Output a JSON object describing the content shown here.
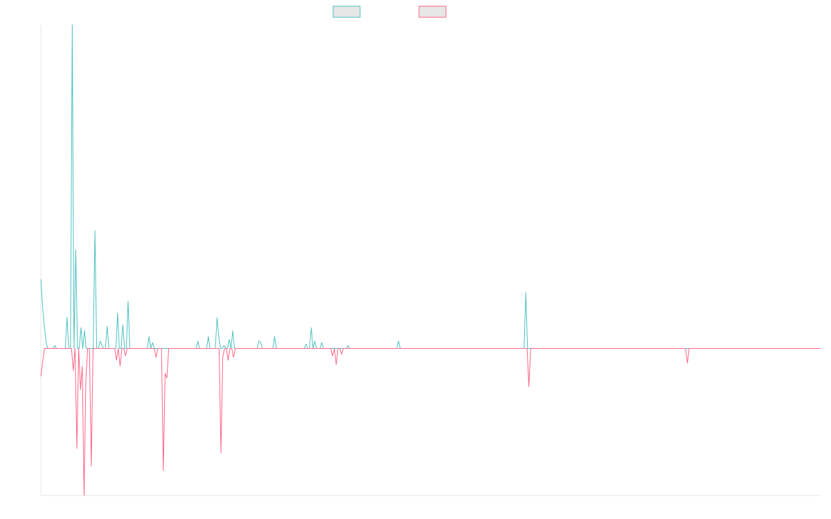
{
  "chart_data": {
    "type": "line",
    "legend_position": "top-center",
    "grid": false,
    "xlim": [
      0,
      430
    ],
    "ylim": [
      -100,
      220
    ],
    "series": [
      {
        "name": "",
        "color": "#4bc0c0",
        "fill": "#e6e6e6",
        "values": [
          47,
          28,
          15,
          4,
          0,
          0,
          0,
          0,
          2,
          0,
          0,
          0,
          0,
          0,
          0,
          21,
          0,
          0,
          220,
          0,
          67,
          0,
          0,
          14,
          0,
          12,
          0,
          0,
          0,
          0,
          0,
          80,
          0,
          0,
          5,
          2,
          0,
          0,
          15,
          0,
          0,
          0,
          0,
          0,
          24,
          0,
          0,
          16,
          0,
          0,
          32,
          0,
          0,
          0,
          0,
          0,
          0,
          0,
          0,
          0,
          0,
          0,
          8,
          0,
          4,
          0,
          0,
          0,
          0,
          0,
          0,
          0,
          0,
          0,
          0,
          0,
          0,
          0,
          0,
          0,
          0,
          0,
          0,
          0,
          0,
          0,
          0,
          0,
          0,
          0,
          5,
          0,
          0,
          0,
          0,
          0,
          8,
          0,
          0,
          0,
          0,
          21,
          8,
          0,
          0,
          2,
          0,
          0,
          6,
          0,
          12,
          0,
          0,
          0,
          0,
          0,
          0,
          0,
          0,
          0,
          0,
          0,
          0,
          0,
          0,
          5,
          4,
          0,
          0,
          0,
          0,
          0,
          0,
          0,
          8,
          0,
          0,
          0,
          0,
          0,
          0,
          0,
          0,
          0,
          0,
          0,
          0,
          0,
          0,
          0,
          0,
          0,
          3,
          0,
          0,
          14,
          0,
          5,
          0,
          0,
          0,
          4,
          0,
          0,
          0,
          0,
          0,
          0,
          0,
          0,
          0,
          0,
          0,
          0,
          0,
          0,
          2,
          0,
          0,
          0,
          0,
          0,
          0,
          0,
          0,
          0,
          0,
          0,
          0,
          0,
          0,
          0,
          0,
          0,
          0,
          0,
          0,
          0,
          0,
          0,
          0,
          0,
          0,
          0,
          0,
          5,
          0,
          0,
          0,
          0,
          0,
          0,
          0,
          0,
          0,
          0,
          0,
          0,
          0,
          0,
          0,
          0,
          0,
          0,
          0,
          0,
          0,
          0,
          0,
          0,
          0,
          0,
          0,
          0,
          0,
          0,
          0,
          0,
          0,
          0,
          0,
          0,
          0,
          0,
          0,
          0,
          0,
          0,
          0,
          0,
          0,
          0,
          0,
          0,
          0,
          0,
          0,
          0,
          0,
          0,
          0,
          0,
          0,
          0,
          0,
          0,
          0,
          0,
          0,
          0,
          0,
          0,
          0,
          0,
          0,
          0,
          0,
          0,
          38,
          0,
          0,
          0,
          0,
          0,
          0,
          0,
          0,
          0,
          0,
          0,
          0,
          0,
          0,
          0,
          0,
          0,
          0,
          0,
          0,
          0,
          0,
          0,
          0,
          0,
          0,
          0,
          0,
          0,
          0,
          0,
          0,
          0,
          0,
          0,
          0,
          0,
          0,
          0,
          0,
          0,
          0,
          0,
          0,
          0,
          0,
          0,
          0,
          0,
          0,
          0,
          0,
          0,
          0,
          0,
          0,
          0,
          0,
          0,
          0,
          0,
          0,
          0,
          0,
          0,
          0,
          0,
          0,
          0,
          0,
          0,
          0,
          0,
          0,
          0,
          0,
          0,
          0,
          0,
          0,
          0,
          0,
          0,
          0,
          0,
          0,
          0,
          0,
          0,
          0,
          0,
          0,
          0,
          0,
          0,
          0,
          0,
          0,
          0,
          0,
          0,
          0,
          0,
          0,
          0,
          0,
          0,
          0,
          0,
          0,
          0,
          0,
          0,
          0,
          0,
          0,
          0,
          0,
          0,
          0,
          0,
          0,
          0,
          0,
          0,
          0,
          0,
          0,
          0,
          0,
          0,
          0,
          0,
          0,
          0,
          0,
          0,
          0,
          0,
          0,
          0,
          0,
          0,
          0,
          0,
          0,
          0,
          0,
          0,
          0,
          0,
          0,
          0,
          0,
          0,
          0,
          0,
          0,
          0,
          0,
          0,
          0,
          0,
          0,
          0,
          0,
          0,
          0,
          0
        ]
      },
      {
        "name": "",
        "color": "#ff6384",
        "fill": "#e6e6e6",
        "values": [
          -19,
          -9,
          0,
          0,
          0,
          0,
          0,
          0,
          0,
          0,
          0,
          0,
          0,
          0,
          0,
          0,
          0,
          0,
          -15,
          0,
          -68,
          0,
          -28,
          -12,
          -100,
          -21,
          0,
          0,
          -80,
          0,
          0,
          0,
          0,
          0,
          0,
          0,
          0,
          0,
          0,
          0,
          0,
          0,
          -8,
          0,
          -12,
          0,
          0,
          -5,
          0,
          0,
          0,
          0,
          0,
          0,
          0,
          0,
          0,
          0,
          0,
          0,
          0,
          0,
          0,
          0,
          -6,
          0,
          0,
          0,
          -83,
          -17,
          -20,
          0,
          0,
          0,
          0,
          0,
          0,
          0,
          0,
          0,
          0,
          0,
          0,
          0,
          0,
          0,
          0,
          0,
          0,
          0,
          0,
          0,
          0,
          0,
          0,
          0,
          0,
          0,
          0,
          0,
          -71,
          -6,
          0,
          0,
          -8,
          0,
          0,
          -6,
          0,
          0,
          0,
          0,
          0,
          0,
          0,
          0,
          0,
          0,
          0,
          0,
          0,
          0,
          0,
          0,
          0,
          0,
          0,
          0,
          0,
          0,
          0,
          0,
          0,
          0,
          0,
          0,
          0,
          0,
          0,
          0,
          0,
          0,
          0,
          0,
          0,
          0,
          0,
          0,
          0,
          0,
          0,
          0,
          0,
          0,
          0,
          0,
          0,
          0,
          0,
          0,
          0,
          0,
          -5,
          0,
          -11,
          0,
          0,
          -4,
          0,
          0,
          0,
          0,
          0,
          0,
          0,
          0,
          0,
          0,
          0,
          0,
          0,
          0,
          0,
          0,
          0,
          0,
          0,
          0,
          0,
          0,
          0,
          0,
          0,
          0,
          0,
          0,
          0,
          0,
          0,
          0,
          0,
          0,
          0,
          0,
          0,
          0,
          0,
          0,
          0,
          0,
          0,
          0,
          0,
          0,
          0,
          0,
          0,
          0,
          0,
          0,
          0,
          0,
          0,
          0,
          0,
          0,
          0,
          0,
          0,
          0,
          0,
          0,
          0,
          0,
          0,
          0,
          0,
          0,
          0,
          0,
          0,
          0,
          0,
          0,
          0,
          0,
          0,
          0,
          0,
          0,
          0,
          0,
          0,
          0,
          0,
          0,
          0,
          0,
          0,
          0,
          0,
          0,
          0,
          0,
          0,
          0,
          0,
          0,
          0,
          0,
          0,
          -26,
          0,
          0,
          0,
          0,
          0,
          0,
          0,
          0,
          0,
          0,
          0,
          0,
          0,
          0,
          0,
          0,
          0,
          0,
          0,
          0,
          0,
          0,
          0,
          0,
          0,
          0,
          0,
          0,
          0,
          0,
          0,
          0,
          0,
          0,
          0,
          0,
          0,
          0,
          0,
          0,
          0,
          0,
          0,
          0,
          0,
          0,
          0,
          0,
          0,
          0,
          0,
          0,
          0,
          0,
          0,
          0,
          0,
          0,
          0,
          0,
          0,
          0,
          0,
          0,
          0,
          0,
          0,
          0,
          0,
          0,
          0,
          0,
          0,
          0,
          0,
          0,
          0,
          0,
          0,
          0,
          0,
          0,
          0,
          0,
          0,
          0,
          0,
          -10,
          0,
          0,
          0,
          0,
          0,
          0,
          0,
          0,
          0,
          0,
          0,
          0,
          0,
          0,
          0,
          0,
          0,
          0,
          0,
          0,
          0,
          0,
          0,
          0,
          0,
          0,
          0,
          0,
          0,
          0,
          0,
          0,
          0,
          0,
          0,
          0,
          0,
          0,
          0,
          0,
          0,
          0,
          0,
          0,
          0,
          0,
          0,
          0,
          0,
          0,
          0,
          0,
          0,
          0,
          0,
          0,
          0,
          0,
          0,
          0,
          0,
          0,
          0,
          0,
          0,
          0,
          0,
          0,
          0,
          0,
          0,
          0,
          0,
          0
        ]
      }
    ]
  }
}
